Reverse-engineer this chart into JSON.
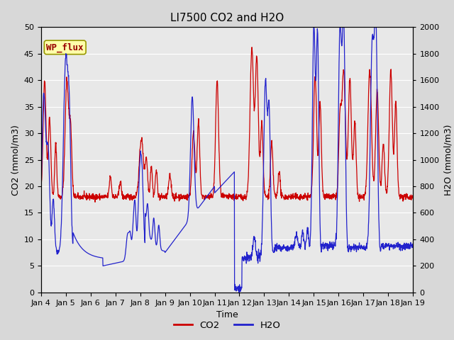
{
  "title": "LI7500 CO2 and H2O",
  "xlabel": "Time",
  "ylabel_left": "CO2 (mmol/m3)",
  "ylabel_right": "H2O (mmol/m3)",
  "ylim_left": [
    0,
    50
  ],
  "ylim_right": [
    0,
    2000
  ],
  "yticks_left": [
    0,
    5,
    10,
    15,
    20,
    25,
    30,
    35,
    40,
    45,
    50
  ],
  "yticks_right": [
    0,
    200,
    400,
    600,
    800,
    1000,
    1200,
    1400,
    1600,
    1800,
    2000
  ],
  "xtick_labels": [
    "Jan 4",
    "Jan 5",
    "Jan 6",
    "Jan 7",
    "Jan 8",
    "Jan 9",
    "Jan 10",
    "Jan 11",
    "Jan 12",
    "Jan 13",
    "Jan 14",
    "Jan 15",
    "Jan 16",
    "Jan 17",
    "Jan 18",
    "Jan 19"
  ],
  "co2_color": "#cc0000",
  "h2o_color": "#2222cc",
  "bg_color": "#d8d8d8",
  "plot_bg_color": "#e8e8e8",
  "annotation_text": "WP_flux",
  "annotation_bg": "#ffffaa",
  "annotation_border": "#999900",
  "legend_co2": "CO2",
  "legend_h2o": "H2O",
  "title_fontsize": 11,
  "axis_fontsize": 9,
  "tick_fontsize": 8
}
